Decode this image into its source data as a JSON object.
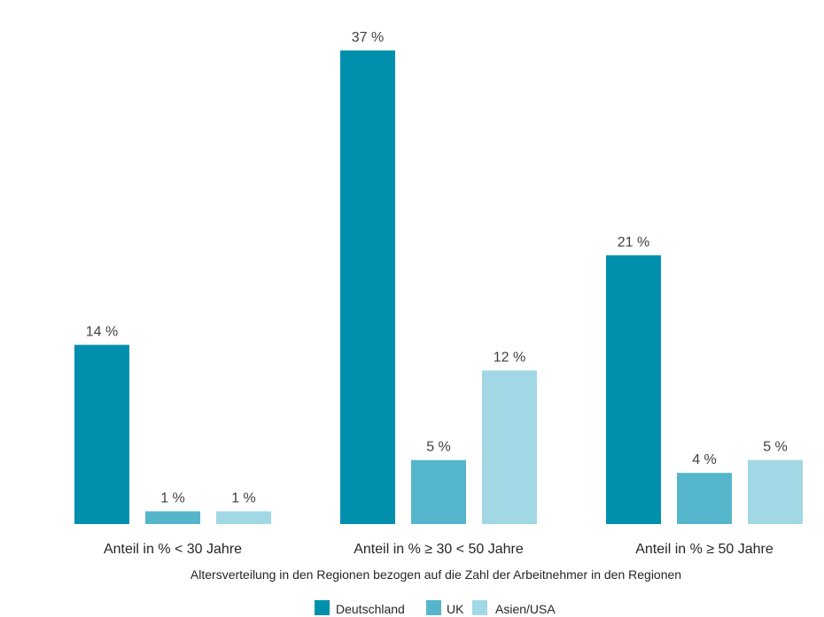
{
  "chart_data": {
    "type": "bar",
    "title": "",
    "xlabel": "Altersverteilung in den Regionen bezogen auf die Zahl der Arbeitnehmer in den Regionen",
    "ylabel": "",
    "categories": [
      "Anteil in % < 30 Jahre",
      "Anteil in % ≥ 30 < 50 Jahre",
      "Anteil in % ≥ 50 Jahre"
    ],
    "series": [
      {
        "name": "Deutschland",
        "values": [
          14,
          37,
          21
        ],
        "labels": [
          "14 %",
          "37 %",
          "21 %"
        ],
        "color": "#0090AE"
      },
      {
        "name": "UK",
        "values": [
          1,
          5,
          4
        ],
        "labels": [
          "1 %",
          "5 %",
          "4 %"
        ],
        "color": "#55B5CB"
      },
      {
        "name": "Asien/USA",
        "values": [
          1,
          12,
          5
        ],
        "labels": [
          "1 %",
          "12 %",
          "5 %"
        ],
        "color": "#A2D8E5"
      }
    ],
    "ylim": [
      0,
      37
    ],
    "grid": false,
    "legend_position": "bottom"
  }
}
